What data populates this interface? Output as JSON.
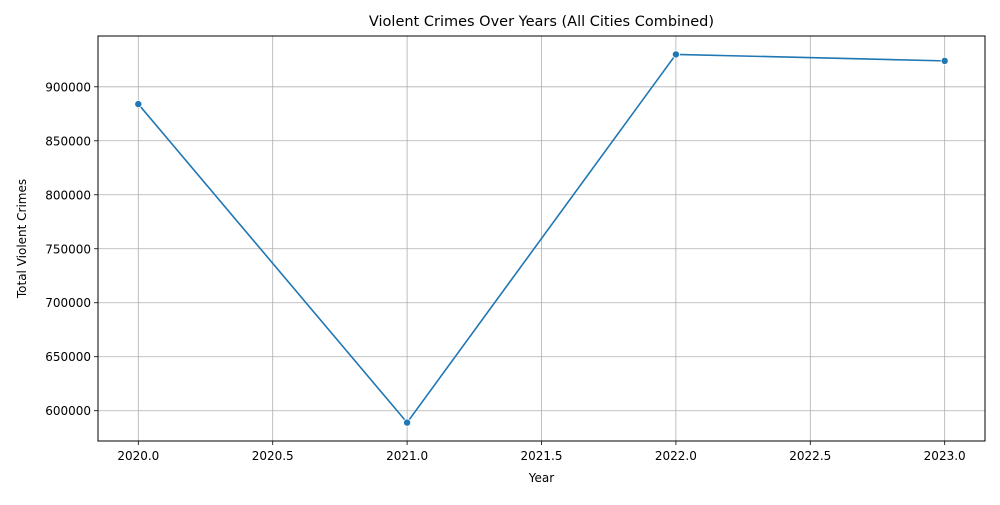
{
  "chart_data": {
    "type": "line",
    "title": "Violent Crimes Over Years (All Cities Combined)",
    "xlabel": "Year",
    "ylabel": "Total Violent Crimes",
    "x": [
      2020,
      2021,
      2022,
      2023
    ],
    "series": [
      {
        "values": [
          884000,
          589000,
          930000,
          924000
        ],
        "color": "#1f77b4",
        "marker": "circle"
      }
    ],
    "xlim": [
      2019.85,
      2023.15
    ],
    "ylim": [
      571950,
      947050
    ],
    "x_ticks": [
      "2020.0",
      "2020.5",
      "2021.0",
      "2021.5",
      "2022.0",
      "2022.5",
      "2023.0"
    ],
    "x_tick_values": [
      2020.0,
      2020.5,
      2021.0,
      2021.5,
      2022.0,
      2022.5,
      2023.0
    ],
    "y_ticks": [
      "600000",
      "650000",
      "700000",
      "750000",
      "800000",
      "850000",
      "900000"
    ],
    "y_tick_values": [
      600000,
      650000,
      700000,
      750000,
      800000,
      850000,
      900000
    ],
    "grid": true,
    "legend": false
  }
}
